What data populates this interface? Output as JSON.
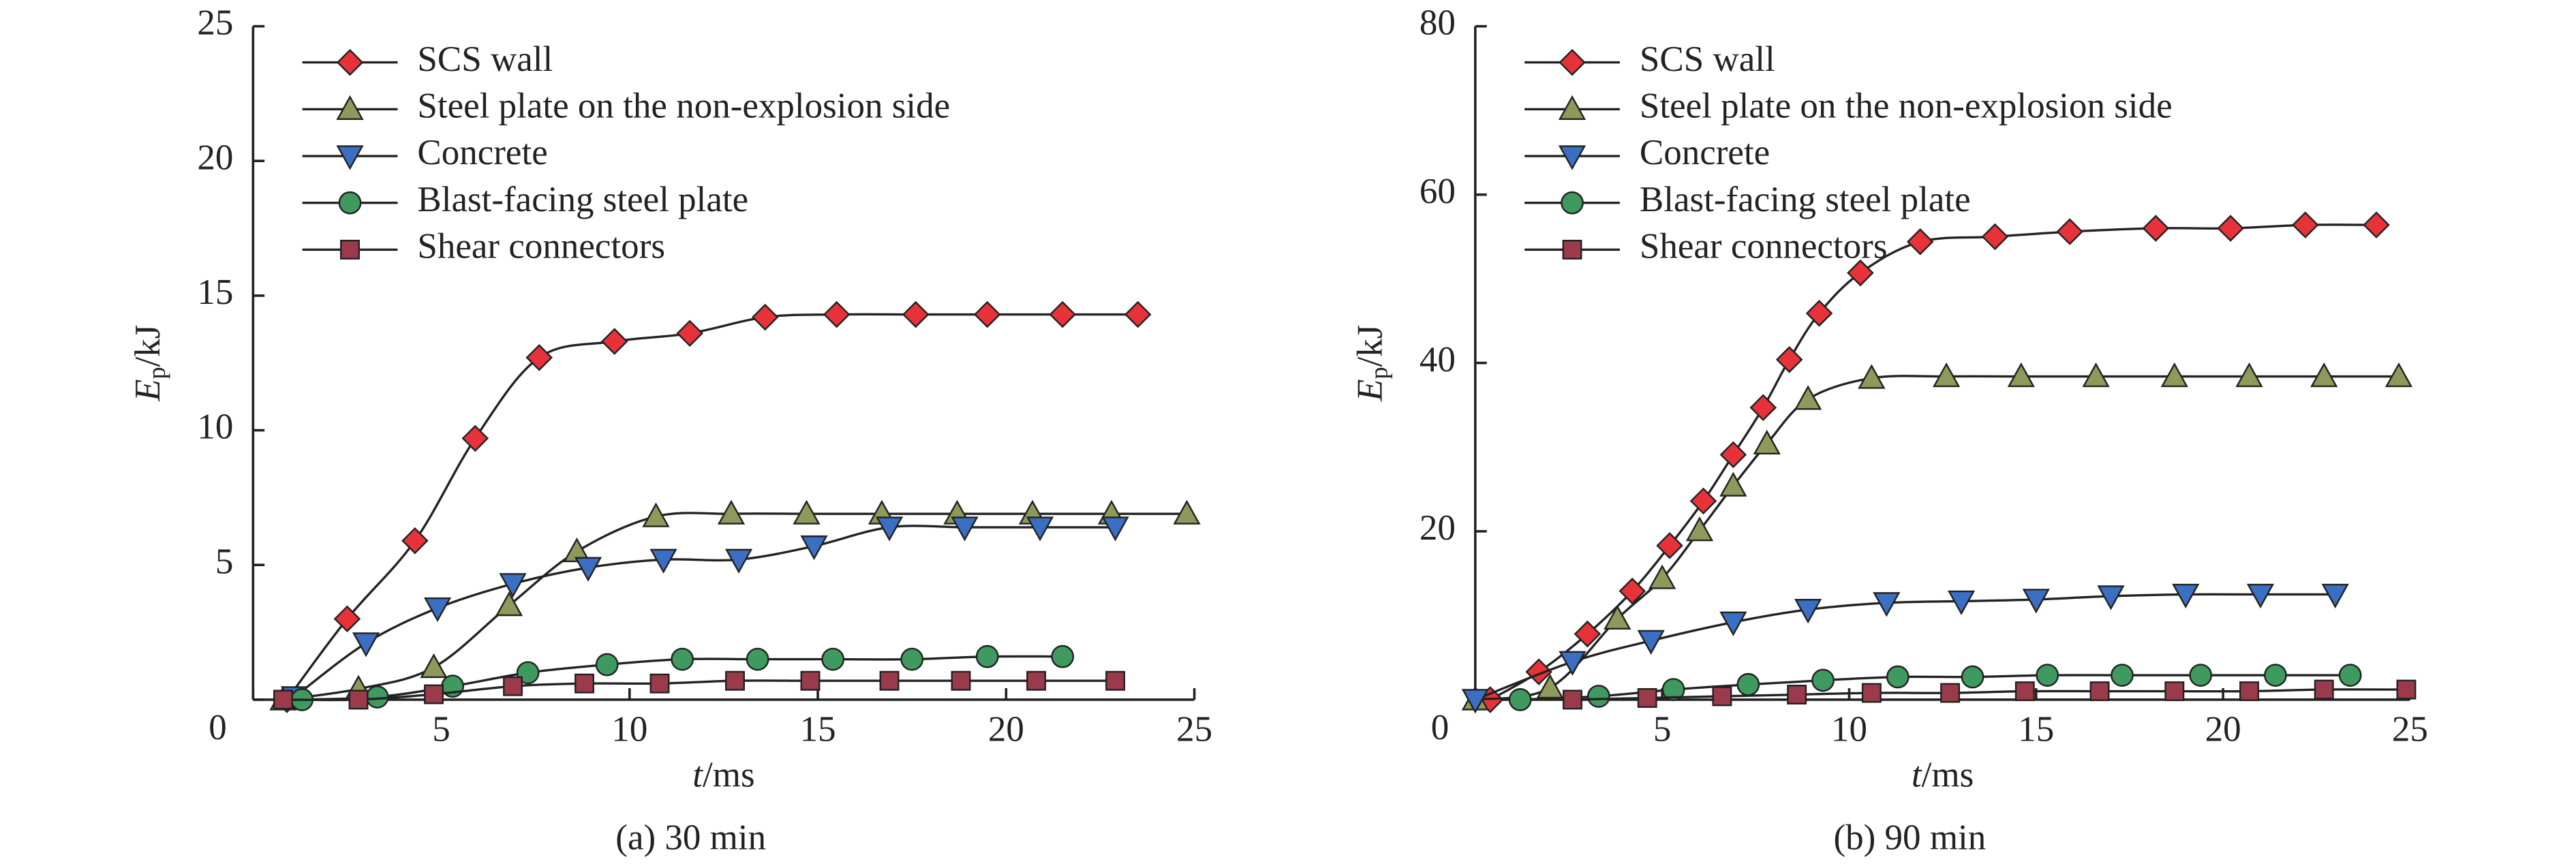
{
  "chart_data": [
    {
      "type": "line",
      "caption": "(a) 30 min",
      "xlabel": {
        "symbol": "t",
        "unit": "/ms"
      },
      "ylabel": {
        "symbol": "E",
        "subscript": "p",
        "unit": "/kJ"
      },
      "xlim": [
        0,
        25
      ],
      "xticks": [
        0,
        5,
        10,
        15,
        20,
        25
      ],
      "ylim": [
        0,
        25
      ],
      "yticks": [
        0,
        5,
        10,
        15,
        20,
        25
      ],
      "legend": "upper left",
      "series": [
        {
          "name": "SCS wall",
          "color": "#e8323a",
          "marker": "diamond",
          "x": [
            0.9,
            2.5,
            4.3,
            5.9,
            7.6,
            9.6,
            11.6,
            13.6,
            15.5,
            17.6,
            19.5,
            21.5,
            23.5
          ],
          "values": [
            0,
            3.0,
            5.9,
            9.7,
            12.7,
            13.3,
            13.6,
            14.2,
            14.3,
            14.3,
            14.3,
            14.3,
            14.3
          ]
        },
        {
          "name": "Steel plate on the non-explosion side",
          "color": "#8c9a5a",
          "marker": "triangle-up",
          "x": [
            0.8,
            2.8,
            4.8,
            6.8,
            8.6,
            10.7,
            12.7,
            14.7,
            16.7,
            18.7,
            20.7,
            22.8,
            24.8
          ],
          "values": [
            0,
            0.4,
            1.2,
            3.5,
            5.5,
            6.8,
            6.9,
            6.9,
            6.9,
            6.9,
            6.9,
            6.9,
            6.9
          ]
        },
        {
          "name": "Concrete",
          "color": "#3a6fc4",
          "marker": "triangle-down",
          "x": [
            1.1,
            3.0,
            4.9,
            6.9,
            8.9,
            10.9,
            12.9,
            14.9,
            16.9,
            18.9,
            20.9,
            22.9
          ],
          "values": [
            0.1,
            2.1,
            3.4,
            4.3,
            4.9,
            5.2,
            5.2,
            5.7,
            6.4,
            6.4,
            6.4,
            6.4
          ]
        },
        {
          "name": "Blast-facing steel plate",
          "color": "#3e9a5e",
          "marker": "circle",
          "x": [
            1.3,
            3.3,
            5.3,
            7.3,
            9.4,
            11.4,
            13.4,
            15.4,
            17.5,
            19.5,
            21.5
          ],
          "values": [
            0,
            0.1,
            0.5,
            1.0,
            1.3,
            1.5,
            1.5,
            1.5,
            1.5,
            1.6,
            1.6
          ]
        },
        {
          "name": "Shear connectors",
          "color": "#9b3a4a",
          "marker": "square",
          "x": [
            0.8,
            2.8,
            4.8,
            6.9,
            8.8,
            10.8,
            12.8,
            14.8,
            16.9,
            18.8,
            20.8,
            22.9
          ],
          "values": [
            0,
            0,
            0.2,
            0.5,
            0.6,
            0.6,
            0.7,
            0.7,
            0.7,
            0.7,
            0.7,
            0.7
          ]
        }
      ]
    },
    {
      "type": "line",
      "caption": "(b) 90 min",
      "xlabel": {
        "symbol": "t",
        "unit": "/ms"
      },
      "ylabel": {
        "symbol": "E",
        "subscript": "p",
        "unit": "/kJ"
      },
      "xlim": [
        0,
        25
      ],
      "xticks": [
        0,
        5,
        10,
        15,
        20,
        25
      ],
      "ylim": [
        0,
        80
      ],
      "yticks": [
        0,
        20,
        40,
        60,
        80
      ],
      "legend": "upper left",
      "series": [
        {
          "name": "SCS wall",
          "color": "#e8323a",
          "marker": "diamond",
          "x": [
            0.4,
            1.7,
            3.0,
            4.2,
            5.2,
            6.1,
            6.9,
            7.7,
            8.4,
            9.2,
            10.3,
            11.9,
            13.9,
            15.9,
            18.2,
            20.2,
            22.2,
            24.1
          ],
          "values": [
            0,
            3.3,
            7.8,
            12.9,
            18.3,
            23.6,
            29.1,
            34.7,
            40.4,
            45.9,
            50.7,
            54.4,
            55.0,
            55.6,
            56.0,
            56.0,
            56.4,
            56.4
          ]
        },
        {
          "name": "Steel plate on the non-explosion side",
          "color": "#8c9a5a",
          "marker": "triangle-up",
          "x": [
            0,
            2.0,
            3.8,
            5.0,
            6.0,
            6.9,
            7.8,
            8.9,
            10.6,
            12.6,
            14.6,
            16.6,
            18.7,
            20.7,
            22.7,
            24.7
          ],
          "values": [
            0,
            1.4,
            9.6,
            14.4,
            20.1,
            25.4,
            30.4,
            35.7,
            38.2,
            38.4,
            38.4,
            38.4,
            38.4,
            38.4,
            38.4,
            38.4
          ]
        },
        {
          "name": "Concrete",
          "color": "#3a6fc4",
          "marker": "triangle-down",
          "x": [
            0,
            2.6,
            4.7,
            6.9,
            8.9,
            11.0,
            13.0,
            15.0,
            17.0,
            19.0,
            21.0,
            23.0
          ],
          "values": [
            0,
            4.5,
            7.0,
            9.2,
            10.7,
            11.5,
            11.7,
            11.9,
            12.3,
            12.5,
            12.5,
            12.5
          ]
        },
        {
          "name": "Blast-facing steel plate",
          "color": "#3e9a5e",
          "marker": "circle",
          "x": [
            1.2,
            3.3,
            5.3,
            7.3,
            9.3,
            11.3,
            13.3,
            15.3,
            17.3,
            19.4,
            21.4,
            23.4
          ],
          "values": [
            0,
            0.4,
            1.2,
            1.8,
            2.3,
            2.7,
            2.7,
            2.9,
            2.9,
            2.9,
            2.9,
            2.9
          ]
        },
        {
          "name": "Shear connectors",
          "color": "#9b3a4a",
          "marker": "square",
          "x": [
            2.6,
            4.6,
            6.6,
            8.6,
            10.6,
            12.7,
            14.7,
            16.7,
            18.7,
            20.7,
            22.7,
            24.9
          ],
          "values": [
            0,
            0.2,
            0.4,
            0.6,
            0.8,
            0.8,
            1.0,
            1.0,
            1.0,
            1.0,
            1.2,
            1.2
          ]
        }
      ]
    }
  ]
}
